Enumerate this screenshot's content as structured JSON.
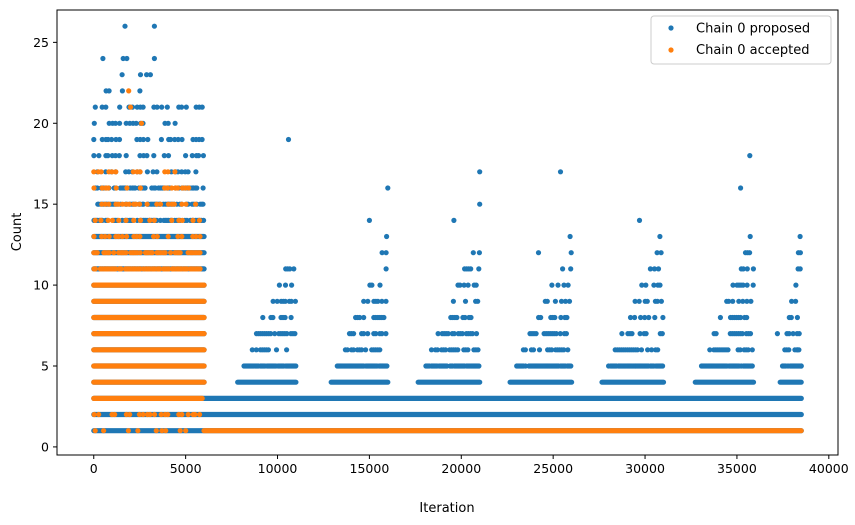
{
  "chart_data": {
    "type": "scatter",
    "title": "",
    "xlabel": "Iteration",
    "ylabel": "Count",
    "xlim": [
      -2000,
      40500
    ],
    "ylim": [
      -0.5,
      27
    ],
    "x_ticks": [
      0,
      5000,
      10000,
      15000,
      20000,
      25000,
      30000,
      35000,
      40000
    ],
    "y_ticks": [
      0,
      5,
      10,
      15,
      20,
      25
    ],
    "x_tick_labels": [
      "0",
      "5000",
      "10000",
      "15000",
      "20000",
      "25000",
      "30000",
      "35000",
      "40000"
    ],
    "y_tick_labels": [
      "0",
      "5",
      "10",
      "15",
      "20",
      "25"
    ],
    "grid": false,
    "legend_position": "top-right",
    "series": [
      {
        "name": "Chain 0 proposed",
        "color": "#1f77b4",
        "bands": [
          {
            "y": 1,
            "x_start": 0,
            "x_end": 38500,
            "density": "dense"
          },
          {
            "y": 2,
            "x_start": 0,
            "x_end": 38500,
            "density": "dense"
          },
          {
            "y": 3,
            "x_start": 0,
            "x_end": 38500,
            "density": "dense"
          },
          {
            "y": 4,
            "x_start": 0,
            "x_end": 6000,
            "density": "dense"
          },
          {
            "y": 5,
            "x_start": 0,
            "x_end": 6000,
            "density": "dense"
          },
          {
            "y": 6,
            "x_start": 0,
            "x_end": 6000,
            "density": "dense"
          },
          {
            "y": 7,
            "x_start": 0,
            "x_end": 6000,
            "density": "dense"
          },
          {
            "y": 8,
            "x_start": 0,
            "x_end": 6000,
            "density": "dense"
          },
          {
            "y": 9,
            "x_start": 0,
            "x_end": 6000,
            "density": "dense"
          },
          {
            "y": 10,
            "x_start": 0,
            "x_end": 6000,
            "density": "dense"
          },
          {
            "y": 11,
            "x_start": 0,
            "x_end": 6000,
            "density": "dense"
          },
          {
            "y": 12,
            "x_start": 0,
            "x_end": 6000,
            "density": "dense"
          },
          {
            "y": 13,
            "x_start": 0,
            "x_end": 6000,
            "density": "dense"
          },
          {
            "y": 14,
            "x_start": 0,
            "x_end": 6000,
            "density": "medium"
          },
          {
            "y": 15,
            "x_start": 0,
            "x_end": 6000,
            "density": "medium"
          },
          {
            "y": 16,
            "x_start": 0,
            "x_end": 6000,
            "density": "medium"
          },
          {
            "y": 17,
            "x_start": 0,
            "x_end": 6000,
            "density": "sparse"
          },
          {
            "y": 18,
            "x_start": 0,
            "x_end": 6000,
            "density": "sparse"
          },
          {
            "y": 19,
            "x_start": 0,
            "x_end": 6000,
            "density": "sparse"
          },
          {
            "y": 20,
            "x_start": 0,
            "x_end": 4500,
            "density": "sparse"
          },
          {
            "y": 21,
            "x_start": 0,
            "x_end": 6000,
            "density": "sparse"
          },
          {
            "y": 22,
            "x_start": 200,
            "x_end": 3200,
            "density": "sparse"
          },
          {
            "y": 23,
            "x_start": 1500,
            "x_end": 3500,
            "density": "sparse"
          }
        ],
        "cycles": [
          {
            "start": 7400,
            "peak": 11000
          },
          {
            "start": 12500,
            "peak": 16000
          },
          {
            "start": 17200,
            "peak": 21000
          },
          {
            "start": 22200,
            "peak": 26000
          },
          {
            "start": 27200,
            "peak": 31000
          },
          {
            "start": 32300,
            "peak": 35900
          },
          {
            "start": 37200,
            "peak": 38500
          }
        ],
        "points": [
          {
            "x": 500,
            "y": 24
          },
          {
            "x": 1600,
            "y": 24
          },
          {
            "x": 1800,
            "y": 24
          },
          {
            "x": 3300,
            "y": 24
          },
          {
            "x": 1700,
            "y": 26
          },
          {
            "x": 3300,
            "y": 26
          },
          {
            "x": 5900,
            "y": 21
          },
          {
            "x": 10600,
            "y": 19
          },
          {
            "x": 16000,
            "y": 16
          },
          {
            "x": 15000,
            "y": 14
          },
          {
            "x": 21000,
            "y": 17
          },
          {
            "x": 21000,
            "y": 15
          },
          {
            "x": 19600,
            "y": 14
          },
          {
            "x": 25400,
            "y": 17
          },
          {
            "x": 24200,
            "y": 12
          },
          {
            "x": 35700,
            "y": 18
          },
          {
            "x": 35200,
            "y": 16
          },
          {
            "x": 29700,
            "y": 14
          },
          {
            "x": 37200,
            "y": 7
          },
          {
            "x": 38300,
            "y": 6
          },
          {
            "x": 38500,
            "y": 5
          }
        ]
      },
      {
        "name": "Chain 0 accepted",
        "color": "#ff7f0e",
        "bands": [
          {
            "y": 1,
            "x_start": 0,
            "x_end": 38500,
            "density": "sparse_then_dense",
            "dense_from": 6000
          },
          {
            "y": 2,
            "x_start": 0,
            "x_end": 5800,
            "density": "sparse"
          },
          {
            "y": 3,
            "x_start": 0,
            "x_end": 5900,
            "density": "dense"
          },
          {
            "y": 4,
            "x_start": 0,
            "x_end": 6000,
            "density": "dense"
          },
          {
            "y": 5,
            "x_start": 0,
            "x_end": 6000,
            "density": "dense"
          },
          {
            "y": 6,
            "x_start": 0,
            "x_end": 6000,
            "density": "dense"
          },
          {
            "y": 7,
            "x_start": 0,
            "x_end": 6000,
            "density": "dense"
          },
          {
            "y": 8,
            "x_start": 0,
            "x_end": 6000,
            "density": "dense"
          },
          {
            "y": 9,
            "x_start": 0,
            "x_end": 6000,
            "density": "dense"
          },
          {
            "y": 10,
            "x_start": 0,
            "x_end": 6000,
            "density": "dense"
          },
          {
            "y": 11,
            "x_start": 0,
            "x_end": 5800,
            "density": "medium"
          },
          {
            "y": 12,
            "x_start": 0,
            "x_end": 5800,
            "density": "medium"
          },
          {
            "y": 13,
            "x_start": 0,
            "x_end": 5800,
            "density": "sparse"
          },
          {
            "y": 14,
            "x_start": 0,
            "x_end": 5800,
            "density": "sparse"
          },
          {
            "y": 15,
            "x_start": 0,
            "x_end": 5800,
            "density": "sparse"
          },
          {
            "y": 16,
            "x_start": 0,
            "x_end": 5800,
            "density": "sparse"
          },
          {
            "y": 17,
            "x_start": 0,
            "x_end": 5000,
            "density": "sparse"
          }
        ],
        "points": [
          {
            "x": 1900,
            "y": 22
          },
          {
            "x": 2000,
            "y": 21
          },
          {
            "x": 2600,
            "y": 20
          }
        ]
      }
    ]
  }
}
